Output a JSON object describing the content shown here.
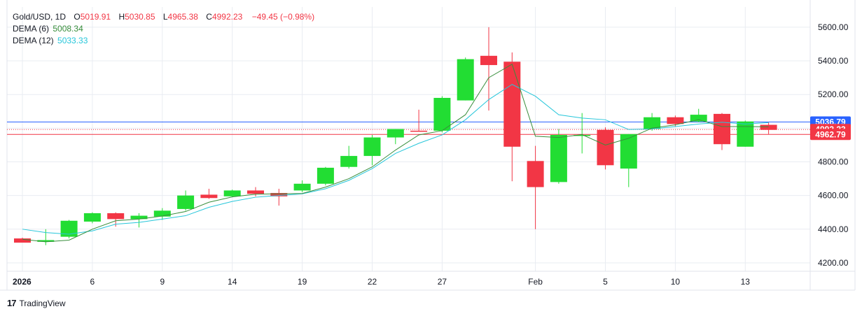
{
  "legend": {
    "symbol": "Gold/USD, 1D",
    "open_label": "O",
    "open": "5019.91",
    "high_label": "H",
    "high": "5030.85",
    "low_label": "L",
    "low": "4965.38",
    "close_label": "C",
    "close": "4992.23",
    "change": "−49.45 (−0.98%)",
    "dema6_label": "DEMA (6)",
    "dema6_value": "5008.34",
    "dema12_label": "DEMA (12)",
    "dema12_value": "5033.33"
  },
  "brand": {
    "name": "TradingView"
  },
  "colors": {
    "up": "#22DD33",
    "down": "#F23645",
    "dema6": "#388E3C",
    "dema12": "#26C6DA",
    "blue_line": "#2962FF",
    "red_line": "#F23645",
    "grid": "#E9ECF2",
    "text": "#131722"
  },
  "chart_data": {
    "type": "candlestick",
    "x_tick_labels": [
      "2026",
      "6",
      "9",
      "14",
      "19",
      "22",
      "27",
      "Feb",
      "5",
      "10",
      "13"
    ],
    "y_ticks": [
      4200,
      4400,
      4600,
      4800,
      5000,
      5200,
      5400,
      5600
    ],
    "y_tick_labels": [
      "4200.00",
      "4400.00",
      "4600.00",
      "4800.00",
      "5000.00",
      "5200.00",
      "5400.00",
      "5600.00"
    ],
    "ylim": [
      4150,
      5720
    ],
    "price_labels": [
      {
        "value": 5036.79,
        "text": "5036.79",
        "style": "blue"
      },
      {
        "value": 4992.23,
        "text": "4992.23",
        "style": "red"
      },
      {
        "value": 4962.79,
        "text": "4962.79",
        "style": "red"
      }
    ],
    "candles": [
      {
        "o": 4345,
        "h": 4350,
        "l": 4325,
        "c": 4320
      },
      {
        "o": 4325,
        "h": 4400,
        "l": 4305,
        "c": 4335
      },
      {
        "o": 4355,
        "h": 4455,
        "l": 4345,
        "c": 4450
      },
      {
        "o": 4445,
        "h": 4500,
        "l": 4435,
        "c": 4495
      },
      {
        "o": 4495,
        "h": 4500,
        "l": 4415,
        "c": 4460
      },
      {
        "o": 4460,
        "h": 4495,
        "l": 4410,
        "c": 4480
      },
      {
        "o": 4475,
        "h": 4525,
        "l": 4455,
        "c": 4510
      },
      {
        "o": 4520,
        "h": 4630,
        "l": 4510,
        "c": 4600
      },
      {
        "o": 4605,
        "h": 4640,
        "l": 4580,
        "c": 4585
      },
      {
        "o": 4595,
        "h": 4635,
        "l": 4590,
        "c": 4630
      },
      {
        "o": 4630,
        "h": 4650,
        "l": 4595,
        "c": 4610
      },
      {
        "o": 4615,
        "h": 4640,
        "l": 4540,
        "c": 4595
      },
      {
        "o": 4630,
        "h": 4690,
        "l": 4620,
        "c": 4670
      },
      {
        "o": 4670,
        "h": 4770,
        "l": 4660,
        "c": 4765
      },
      {
        "o": 4770,
        "h": 4895,
        "l": 4760,
        "c": 4835
      },
      {
        "o": 4835,
        "h": 4960,
        "l": 4780,
        "c": 4945
      },
      {
        "o": 4945,
        "h": 4995,
        "l": 4905,
        "c": 4995
      },
      {
        "o": 4985,
        "h": 5110,
        "l": 4980,
        "c": 4980
      },
      {
        "o": 4985,
        "h": 5190,
        "l": 4975,
        "c": 5180
      },
      {
        "o": 5165,
        "h": 5420,
        "l": 5165,
        "c": 5410
      },
      {
        "o": 5430,
        "h": 5600,
        "l": 5105,
        "c": 5375
      },
      {
        "o": 5395,
        "h": 5450,
        "l": 4685,
        "c": 4890
      },
      {
        "o": 4805,
        "h": 4895,
        "l": 4400,
        "c": 4650
      },
      {
        "o": 4680,
        "h": 4995,
        "l": 4670,
        "c": 4960
      },
      {
        "o": 4960,
        "h": 5090,
        "l": 4850,
        "c": 4960
      },
      {
        "o": 4990,
        "h": 5005,
        "l": 4755,
        "c": 4780
      },
      {
        "o": 4760,
        "h": 4965,
        "l": 4650,
        "c": 4965
      },
      {
        "o": 4995,
        "h": 5090,
        "l": 4985,
        "c": 5065
      },
      {
        "o": 5065,
        "h": 5075,
        "l": 5010,
        "c": 5025
      },
      {
        "o": 5040,
        "h": 5115,
        "l": 5035,
        "c": 5080
      },
      {
        "o": 5085,
        "h": 5090,
        "l": 4870,
        "c": 4905
      },
      {
        "o": 4890,
        "h": 5045,
        "l": 4890,
        "c": 5040
      },
      {
        "o": 5020,
        "h": 5035,
        "l": 4965,
        "c": 4990
      }
    ],
    "dema6": [
      4340,
      4325,
      4335,
      4400,
      4450,
      4460,
      4478,
      4505,
      4560,
      4592,
      4608,
      4610,
      4612,
      4650,
      4700,
      4770,
      4870,
      4960,
      4985,
      5080,
      5300,
      5380,
      4952,
      4945,
      4962,
      4900,
      4940,
      5000,
      5020,
      5050,
      5010,
      5010,
      5008.34
    ],
    "dema12": [
      4400,
      4380,
      4370,
      4390,
      4430,
      4440,
      4460,
      4480,
      4530,
      4565,
      4590,
      4600,
      4610,
      4640,
      4690,
      4760,
      4850,
      4910,
      4960,
      5050,
      5170,
      5260,
      5190,
      5080,
      5060,
      5050,
      4992,
      4995,
      5010,
      5025,
      5035,
      5025,
      5033.33
    ]
  }
}
